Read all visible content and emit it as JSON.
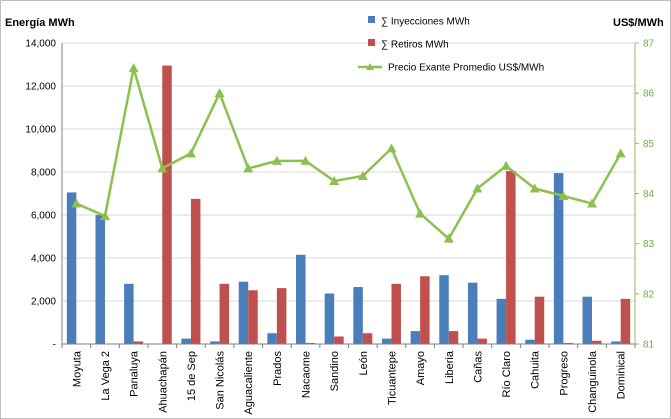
{
  "chart_data": {
    "type": "bar",
    "title": "",
    "xlabel": "",
    "ylabel": "Energía MWh",
    "ylabel_right": "US$/MWh",
    "ylim": [
      0,
      14000
    ],
    "ylim_right": [
      81,
      87
    ],
    "y_ticks": [
      "-",
      "2,000",
      "4,000",
      "6,000",
      "8,000",
      "10,000",
      "12,000",
      "14,000"
    ],
    "y_ticks_right": [
      "81",
      "82",
      "83",
      "84",
      "85",
      "86",
      "87"
    ],
    "grid": true,
    "legend_position": "top",
    "categories": [
      "Moyuta",
      "La Vega 2",
      "Panaluya",
      "Ahuachapán",
      "15 de Sep",
      "San Nicolás",
      "Aguacaliente",
      "Prados",
      "Nacaome",
      "Sandino",
      "León",
      "Ticuantepe",
      "Amayo",
      "Liberia",
      "Cañas",
      "Río Claro",
      "Cahuita",
      "Progreso",
      "Changuinola",
      "Dominical"
    ],
    "series": [
      {
        "name": "∑ Inyecciones MWh",
        "type": "bar",
        "axis": "left",
        "color": "#4a7ebb",
        "values": [
          7050,
          6000,
          2800,
          0,
          250,
          120,
          2900,
          500,
          4150,
          2350,
          2650,
          250,
          600,
          3200,
          2850,
          2100,
          200,
          7950,
          2200,
          120
        ]
      },
      {
        "name": "∑ Retiros MWh",
        "type": "bar",
        "axis": "left",
        "color": "#c0504d",
        "values": [
          0,
          0,
          120,
          12950,
          6750,
          2800,
          2500,
          2600,
          50,
          350,
          500,
          2800,
          3150,
          600,
          250,
          8050,
          2200,
          50,
          150,
          2100
        ]
      },
      {
        "name": "Precio Exante Promedio US$/MWh",
        "type": "line",
        "axis": "right",
        "color": "#8cc04f",
        "values": [
          83.8,
          83.55,
          86.5,
          84.5,
          84.8,
          86.0,
          84.5,
          84.65,
          84.65,
          84.25,
          84.35,
          84.9,
          83.6,
          83.1,
          84.1,
          84.55,
          84.1,
          83.95,
          83.8,
          84.8
        ]
      }
    ]
  }
}
